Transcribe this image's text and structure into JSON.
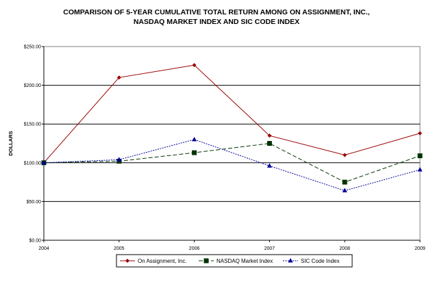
{
  "chart_data": {
    "type": "line",
    "title_line1": "COMPARISON OF 5-YEAR CUMULATIVE TOTAL RETURN AMONG ON ASSIGNMENT, INC.,",
    "title_line2": "NASDAQ MARKET INDEX AND SIC CODE INDEX",
    "ylabel": "DOLLARS",
    "xlabel": "",
    "x": [
      "2004",
      "2005",
      "2006",
      "2007",
      "2008",
      "2009"
    ],
    "ylim": [
      0,
      250
    ],
    "yticks": [
      0,
      50,
      100,
      150,
      200,
      250
    ],
    "ytick_labels": [
      "$0.00",
      "$50.00",
      "$100.00",
      "$150.00",
      "$200.00",
      "$250.00"
    ],
    "grid": "horizontal",
    "legend_placement": "bottom",
    "series": [
      {
        "name": "On Assignment, Inc.",
        "values": [
          100,
          210,
          226,
          135,
          110,
          138
        ],
        "color": "#990000",
        "marker": "diamond",
        "dash": "solid"
      },
      {
        "name": "NASDAQ Market Index",
        "values": [
          100,
          102,
          113,
          125,
          75,
          109
        ],
        "color": "#003300",
        "marker": "square",
        "dash": "dashed"
      },
      {
        "name": "SIC Code Index",
        "values": [
          100,
          104,
          130,
          96,
          64,
          91
        ],
        "color": "#000099",
        "marker": "triangle",
        "dash": "dotted"
      }
    ]
  }
}
